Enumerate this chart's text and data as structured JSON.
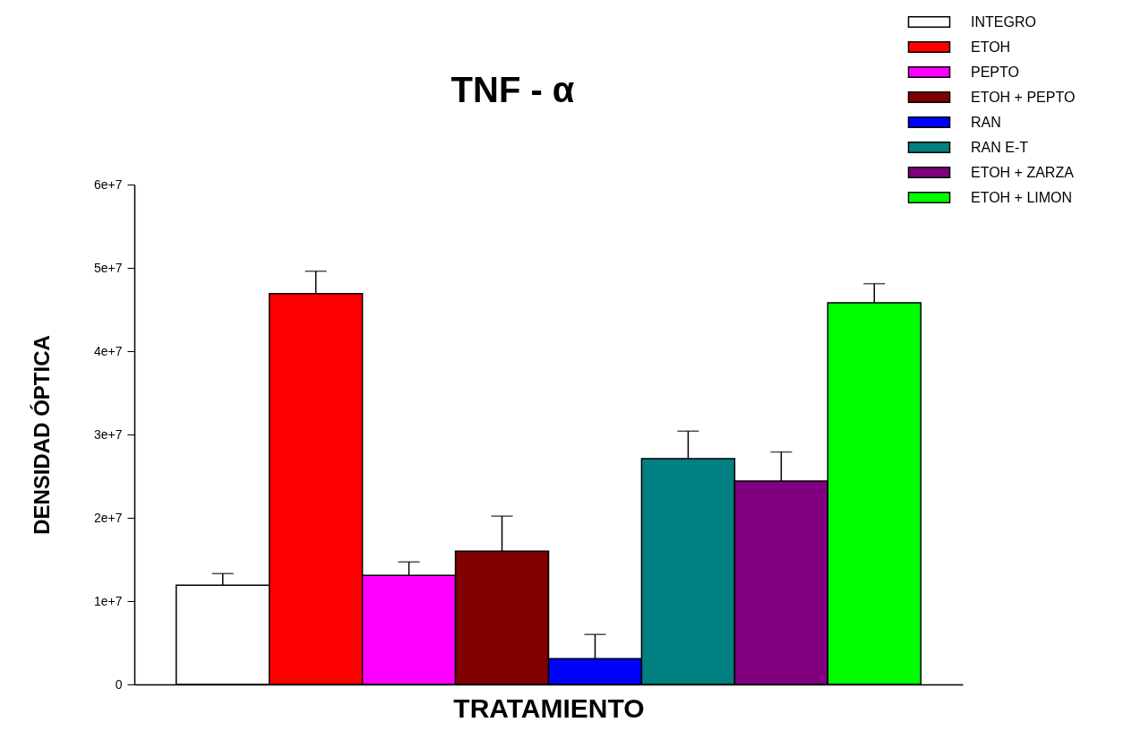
{
  "chart_data": {
    "type": "bar",
    "title": "TNF - α",
    "xlabel": "TRATAMIENTO",
    "ylabel": "DENSIDAD ÓPTICA",
    "categories": [
      null,
      null,
      null,
      null,
      null,
      null,
      null,
      null
    ],
    "series": [
      {
        "name": "INTEGRO",
        "color": "#ffffff",
        "values": [
          11900000,
          null,
          null,
          null,
          null,
          null,
          null,
          null
        ],
        "errors": [
          [
            11900000,
            13300000
          ],
          null,
          null,
          null,
          null,
          null,
          null,
          null
        ]
      },
      {
        "name": "ETOH",
        "color": "#ff0000",
        "values": [
          null,
          46900000,
          null,
          null,
          null,
          null,
          null,
          null
        ],
        "errors": [
          null,
          [
            46900000,
            49600000
          ],
          null,
          null,
          null,
          null,
          null,
          null
        ]
      },
      {
        "name": "PEPTO",
        "color": "#ff00ff",
        "values": [
          null,
          null,
          13100000,
          null,
          null,
          null,
          null,
          null
        ],
        "errors": [
          null,
          null,
          [
            13100000,
            14700000
          ],
          null,
          null,
          null,
          null,
          null
        ]
      },
      {
        "name": "ETOH + PEPTO",
        "color": "#800000",
        "values": [
          null,
          null,
          null,
          16000000,
          null,
          null,
          null,
          null
        ],
        "errors": [
          null,
          null,
          null,
          [
            16000000,
            20200000
          ],
          null,
          null,
          null,
          null
        ]
      },
      {
        "name": "RAN",
        "color": "#0000ff",
        "values": [
          null,
          null,
          null,
          null,
          3100000,
          null,
          null,
          null
        ],
        "errors": [
          null,
          null,
          null,
          null,
          [
            3100000,
            6000000
          ],
          null,
          null,
          null
        ]
      },
      {
        "name": "RAN E-T",
        "color": "#008080",
        "values": [
          null,
          null,
          null,
          null,
          null,
          27100000,
          null,
          null
        ],
        "errors": [
          null,
          null,
          null,
          null,
          null,
          [
            27100000,
            30400000
          ],
          null,
          null
        ]
      },
      {
        "name": "ETOH + ZARZA",
        "color": "#800080",
        "values": [
          null,
          null,
          null,
          null,
          null,
          null,
          24400000,
          null
        ],
        "errors": [
          null,
          null,
          null,
          null,
          null,
          null,
          [
            24400000,
            27900000
          ],
          null
        ]
      },
      {
        "name": "ETOH + LIMON",
        "color": "#00ff00",
        "values": [
          null,
          null,
          null,
          null,
          null,
          null,
          null,
          45800000
        ],
        "errors": [
          null,
          null,
          null,
          null,
          null,
          null,
          null,
          [
            45800000,
            48100000
          ]
        ]
      }
    ],
    "ylim": [
      0,
      60000000
    ],
    "yticks": [
      0,
      {
        "value": 10000000,
        "label": "1e+7"
      },
      {
        "value": 20000000,
        "label": "2e+7"
      },
      {
        "value": 30000000,
        "label": "3e+7"
      },
      {
        "value": 40000000,
        "label": "4e+7"
      },
      {
        "value": 50000000,
        "label": "5e+7"
      },
      {
        "value": 60000000,
        "label": "6e+7"
      }
    ],
    "tick_labels": "y",
    "grid": false,
    "legend": "top right"
  }
}
